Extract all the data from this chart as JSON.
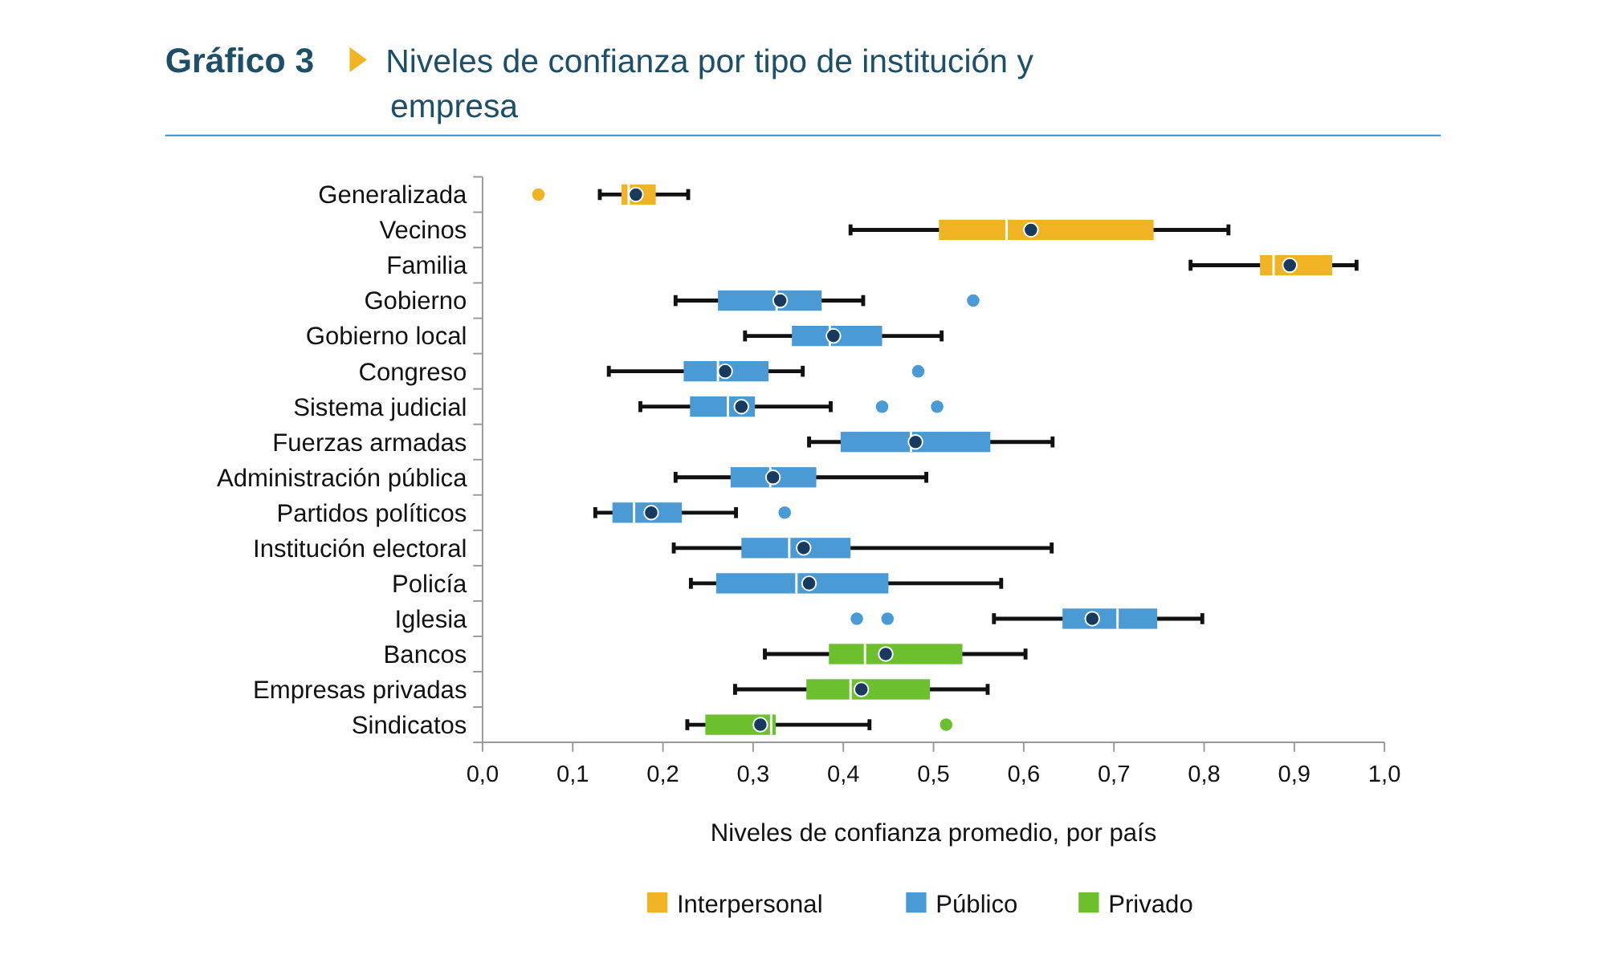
{
  "chart_data": {
    "type": "box",
    "orientation": "horizontal",
    "title": "Gráfico 3",
    "subtitle": "Niveles de confianza por tipo de institución y empresa",
    "xlabel": "Niveles de confianza promedio, por país",
    "categories": [
      "Generalizada",
      "Vecinos",
      "Familia",
      "Gobierno",
      "Gobierno local",
      "Congreso",
      "Sistema judicial",
      "Fuerzas armadas",
      "Administración pública",
      "Partidos políticos",
      "Institución electoral",
      "Policía",
      "Iglesia",
      "Bancos",
      "Empresas privadas",
      "Sindicatos"
    ],
    "xlim": [
      0,
      1
    ],
    "xticks": [
      {
        "value": 0,
        "label": "0,0"
      },
      {
        "value": 0.1,
        "label": "0,1"
      },
      {
        "value": 0.2,
        "label": "0,2"
      },
      {
        "value": 0.3,
        "label": "0,3"
      },
      {
        "value": 0.4,
        "label": "0,4"
      },
      {
        "value": 0.5,
        "label": "0,5"
      },
      {
        "value": 0.6,
        "label": "0,6"
      },
      {
        "value": 0.7,
        "label": "0,7"
      },
      {
        "value": 0.8,
        "label": "0,8"
      },
      {
        "value": 0.9,
        "label": "0,9"
      },
      {
        "value": 1,
        "label": "1,0"
      }
    ],
    "grid": false,
    "legend": "bottom",
    "series": [
      {
        "name": "Interpersonal",
        "color": "#f0b323",
        "boxes": [
          {
            "low": 0.13,
            "q1": 0.154,
            "median": 0.162,
            "q3": 0.192,
            "high": 0.228,
            "mean": 0.17,
            "outliers": [
              0.062
            ]
          },
          {
            "low": 0.408,
            "q1": 0.506,
            "median": 0.581,
            "q3": 0.744,
            "high": 0.827,
            "mean": 0.608
          },
          {
            "low": 0.785,
            "q1": 0.862,
            "median": 0.877,
            "q3": 0.942,
            "high": 0.969,
            "mean": 0.895
          },
          null,
          null,
          null,
          null,
          null,
          null,
          null,
          null,
          null,
          null,
          null,
          null,
          null
        ]
      },
      {
        "name": "Público",
        "color": "#4a9ad6",
        "boxes": [
          null,
          null,
          null,
          {
            "low": 0.214,
            "q1": 0.261,
            "median": 0.326,
            "q3": 0.376,
            "high": 0.422,
            "mean": 0.33,
            "outliers": [
              0.544
            ]
          },
          {
            "low": 0.291,
            "q1": 0.343,
            "median": 0.385,
            "q3": 0.443,
            "high": 0.509,
            "mean": 0.389
          },
          {
            "low": 0.14,
            "q1": 0.223,
            "median": 0.261,
            "q3": 0.317,
            "high": 0.355,
            "mean": 0.269,
            "outliers": [
              0.483
            ]
          },
          {
            "low": 0.175,
            "q1": 0.23,
            "median": 0.272,
            "q3": 0.302,
            "high": 0.386,
            "mean": 0.287,
            "outliers": [
              0.443,
              0.504
            ]
          },
          {
            "low": 0.362,
            "q1": 0.397,
            "median": 0.475,
            "q3": 0.563,
            "high": 0.632,
            "mean": 0.48
          },
          {
            "low": 0.214,
            "q1": 0.275,
            "median": 0.319,
            "q3": 0.37,
            "high": 0.492,
            "mean": 0.322
          },
          {
            "low": 0.125,
            "q1": 0.144,
            "median": 0.168,
            "q3": 0.221,
            "high": 0.281,
            "mean": 0.187,
            "outliers": [
              0.335
            ]
          },
          {
            "low": 0.212,
            "q1": 0.287,
            "median": 0.34,
            "q3": 0.408,
            "high": 0.631,
            "mean": 0.356
          },
          {
            "low": 0.231,
            "q1": 0.259,
            "median": 0.348,
            "q3": 0.45,
            "high": 0.575,
            "mean": 0.362
          },
          {
            "low": 0.567,
            "q1": 0.643,
            "median": 0.704,
            "q3": 0.748,
            "high": 0.798,
            "mean": 0.676,
            "outliers": [
              0.415,
              0.449
            ]
          },
          null,
          null,
          null
        ]
      },
      {
        "name": "Privado",
        "color": "#6cc02e",
        "boxes": [
          null,
          null,
          null,
          null,
          null,
          null,
          null,
          null,
          null,
          null,
          null,
          null,
          null,
          {
            "low": 0.313,
            "q1": 0.384,
            "median": 0.424,
            "q3": 0.532,
            "high": 0.602,
            "mean": 0.447
          },
          {
            "low": 0.28,
            "q1": 0.359,
            "median": 0.408,
            "q3": 0.496,
            "high": 0.56,
            "mean": 0.42
          },
          {
            "low": 0.227,
            "q1": 0.247,
            "median": 0.32,
            "q3": 0.325,
            "high": 0.429,
            "mean": 0.308,
            "outliers": [
              0.514
            ]
          }
        ]
      }
    ]
  }
}
